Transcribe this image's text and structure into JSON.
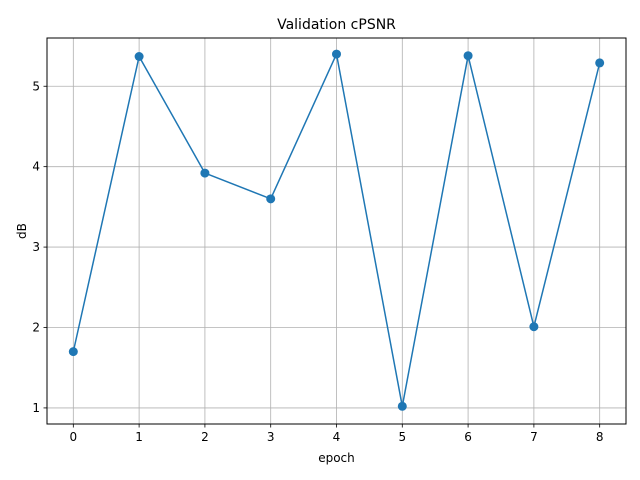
{
  "chart_data": {
    "type": "line",
    "title": "Validation cPSNR",
    "xlabel": "epoch",
    "ylabel": "dB",
    "x": [
      0,
      1,
      2,
      3,
      4,
      5,
      6,
      7,
      8
    ],
    "series": [
      {
        "values": [
          1.7,
          5.37,
          3.92,
          3.6,
          5.4,
          1.02,
          5.38,
          2.01,
          5.29
        ],
        "color": "#1f77b4",
        "marker": "circle"
      }
    ],
    "xticks": [
      0,
      1,
      2,
      3,
      4,
      5,
      6,
      7,
      8
    ],
    "yticks": [
      1,
      2,
      3,
      4,
      5
    ],
    "xlim": [
      -0.4,
      8.4
    ],
    "ylim": [
      0.8,
      5.6
    ],
    "grid": true
  }
}
